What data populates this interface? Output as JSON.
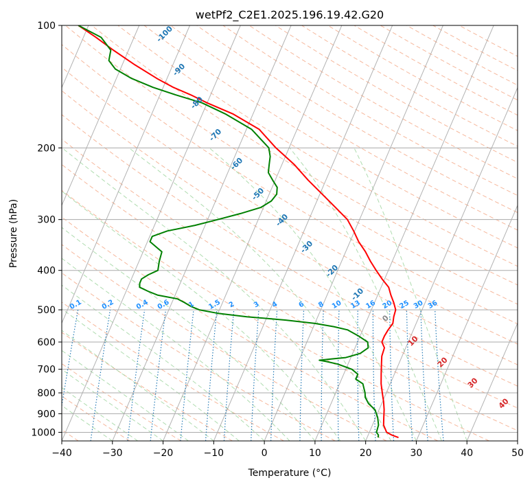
{
  "chart_data": {
    "type": "line",
    "subtype": "skew-t log-p",
    "title": "wetPf2_C2E1.2025.196.19.42.G20",
    "xlabel": "Temperature (°C)",
    "ylabel": "Pressure (hPa)",
    "xlim": [
      -40,
      50
    ],
    "ylim": [
      1050,
      100
    ],
    "y_scale": "log",
    "grid": true,
    "x_ticks": [
      -40,
      -30,
      -20,
      -10,
      0,
      10,
      20,
      30,
      40,
      50
    ],
    "y_ticks": [
      100,
      200,
      300,
      400,
      500,
      600,
      700,
      800,
      900,
      1000
    ],
    "colors": {
      "temperature": "#ff0000",
      "dewpoint": "#008000",
      "dry_adiabat": "#f4a582",
      "moist_adiabat": "#a6d8a6",
      "mixing_ratio": "#1f77b4",
      "isotherm": "#999999"
    },
    "series": [
      {
        "color": "#ff0000",
        "points": [
          [
            1030,
            26.2
          ],
          [
            1015,
            24.6
          ],
          [
            1000,
            23.4
          ],
          [
            960,
            22.2
          ],
          [
            920,
            21.6
          ],
          [
            880,
            21.0
          ],
          [
            840,
            20.2
          ],
          [
            800,
            19.2
          ],
          [
            760,
            18.2
          ],
          [
            720,
            17.4
          ],
          [
            680,
            16.6
          ],
          [
            650,
            16.0
          ],
          [
            620,
            15.8
          ],
          [
            600,
            14.8
          ],
          [
            580,
            14.8
          ],
          [
            560,
            15.0
          ],
          [
            540,
            15.4
          ],
          [
            520,
            15.0
          ],
          [
            500,
            14.8
          ],
          [
            480,
            13.8
          ],
          [
            460,
            12.6
          ],
          [
            440,
            11.5
          ],
          [
            420,
            9.5
          ],
          [
            400,
            7.6
          ],
          [
            380,
            5.7
          ],
          [
            360,
            3.9
          ],
          [
            340,
            1.7
          ],
          [
            320,
            -0.2
          ],
          [
            300,
            -2.4
          ],
          [
            280,
            -5.8
          ],
          [
            260,
            -9.5
          ],
          [
            240,
            -13.5
          ],
          [
            220,
            -17.5
          ],
          [
            200,
            -22.6
          ],
          [
            180,
            -27.5
          ],
          [
            165,
            -34.0
          ],
          [
            155,
            -40.0
          ],
          [
            148,
            -44.0
          ],
          [
            142,
            -48.0
          ],
          [
            135,
            -52.0
          ],
          [
            125,
            -57.5
          ],
          [
            115,
            -63.0
          ],
          [
            107,
            -67.5
          ],
          [
            100,
            -72.0
          ]
        ]
      },
      {
        "color": "#008000",
        "points": [
          [
            1030,
            22.2
          ],
          [
            1015,
            22.0
          ],
          [
            1000,
            21.4
          ],
          [
            960,
            21.2
          ],
          [
            920,
            20.4
          ],
          [
            880,
            19.2
          ],
          [
            850,
            17.4
          ],
          [
            820,
            16.2
          ],
          [
            800,
            15.8
          ],
          [
            780,
            15.2
          ],
          [
            760,
            14.6
          ],
          [
            740,
            12.8
          ],
          [
            720,
            12.8
          ],
          [
            700,
            11.2
          ],
          [
            680,
            8.0
          ],
          [
            670,
            5.5
          ],
          [
            665,
            4.0
          ],
          [
            660,
            6.5
          ],
          [
            655,
            9.0
          ],
          [
            640,
            11.5
          ],
          [
            620,
            12.6
          ],
          [
            600,
            12.0
          ],
          [
            580,
            9.7
          ],
          [
            560,
            7.0
          ],
          [
            550,
            4.0
          ],
          [
            540,
            0.0
          ],
          [
            530,
            -6.0
          ],
          [
            520,
            -14.0
          ],
          [
            510,
            -20.0
          ],
          [
            500,
            -24.0
          ],
          [
            490,
            -26.0
          ],
          [
            480,
            -27.5
          ],
          [
            470,
            -29.2
          ],
          [
            460,
            -33.5
          ],
          [
            450,
            -35.7
          ],
          [
            440,
            -37.7
          ],
          [
            430,
            -38.0
          ],
          [
            420,
            -38.0
          ],
          [
            410,
            -37.0
          ],
          [
            400,
            -35.5
          ],
          [
            380,
            -36.0
          ],
          [
            360,
            -36.3
          ],
          [
            340,
            -39.5
          ],
          [
            330,
            -39.5
          ],
          [
            320,
            -37.0
          ],
          [
            310,
            -32.0
          ],
          [
            300,
            -28.0
          ],
          [
            290,
            -24.0
          ],
          [
            280,
            -20.5
          ],
          [
            270,
            -19.0
          ],
          [
            260,
            -18.5
          ],
          [
            250,
            -19.0
          ],
          [
            240,
            -20.5
          ],
          [
            230,
            -22.0
          ],
          [
            220,
            -22.5
          ],
          [
            210,
            -23.0
          ],
          [
            200,
            -24.0
          ],
          [
            180,
            -29.0
          ],
          [
            165,
            -35.5
          ],
          [
            155,
            -41.0
          ],
          [
            148,
            -47.0
          ],
          [
            142,
            -52.0
          ],
          [
            135,
            -57.0
          ],
          [
            128,
            -61.0
          ],
          [
            122,
            -63.0
          ],
          [
            115,
            -63.5
          ],
          [
            107,
            -66.5
          ],
          [
            100,
            -72.0
          ]
        ]
      }
    ],
    "isotherm_labels": [
      "-100",
      "-90",
      "-80",
      "-70",
      "-60",
      "-50",
      "-40",
      "-30",
      "-20",
      "-10",
      "0",
      "10",
      "20",
      "30",
      "40"
    ],
    "mixing_ratio_labels": [
      "0.1",
      "0.2",
      "0.4",
      "0.6",
      "1",
      "1.5",
      "2",
      "3",
      "4",
      "6",
      "8",
      "10",
      "13",
      "16",
      "20",
      "25",
      "30",
      "36"
    ]
  }
}
